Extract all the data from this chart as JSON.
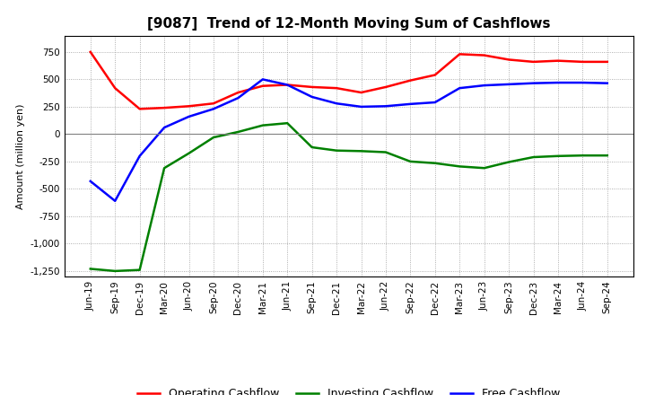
{
  "title": "[9087]  Trend of 12-Month Moving Sum of Cashflows",
  "ylabel": "Amount (million yen)",
  "background_color": "#ffffff",
  "grid_color": "#999999",
  "x_labels": [
    "Jun-19",
    "Sep-19",
    "Dec-19",
    "Mar-20",
    "Jun-20",
    "Sep-20",
    "Dec-20",
    "Mar-21",
    "Jun-21",
    "Sep-21",
    "Dec-21",
    "Mar-22",
    "Jun-22",
    "Sep-22",
    "Dec-22",
    "Mar-23",
    "Jun-23",
    "Sep-23",
    "Dec-23",
    "Mar-24",
    "Jun-24",
    "Sep-24"
  ],
  "operating": [
    750,
    420,
    230,
    240,
    255,
    280,
    380,
    440,
    450,
    430,
    420,
    380,
    430,
    490,
    540,
    730,
    720,
    680,
    660,
    670,
    660,
    660
  ],
  "investing": [
    -1230,
    -1250,
    -1240,
    -310,
    -175,
    -30,
    20,
    80,
    100,
    -120,
    -150,
    -155,
    -165,
    -250,
    -265,
    -295,
    -310,
    -255,
    -210,
    -200,
    -195,
    -195
  ],
  "free": [
    -430,
    -610,
    -200,
    60,
    160,
    230,
    330,
    500,
    450,
    340,
    280,
    250,
    255,
    275,
    290,
    420,
    445,
    455,
    465,
    470,
    470,
    465
  ],
  "ylim": [
    -1300,
    900
  ],
  "yticks": [
    -1250,
    -1000,
    -750,
    -500,
    -250,
    0,
    250,
    500,
    750
  ],
  "operating_color": "#ff0000",
  "investing_color": "#008000",
  "free_color": "#0000ff",
  "line_width": 1.8,
  "title_fontsize": 11,
  "ylabel_fontsize": 8,
  "tick_fontsize": 7.5,
  "legend_fontsize": 9,
  "legend_labels": [
    "Operating Cashflow",
    "Investing Cashflow",
    "Free Cashflow"
  ]
}
